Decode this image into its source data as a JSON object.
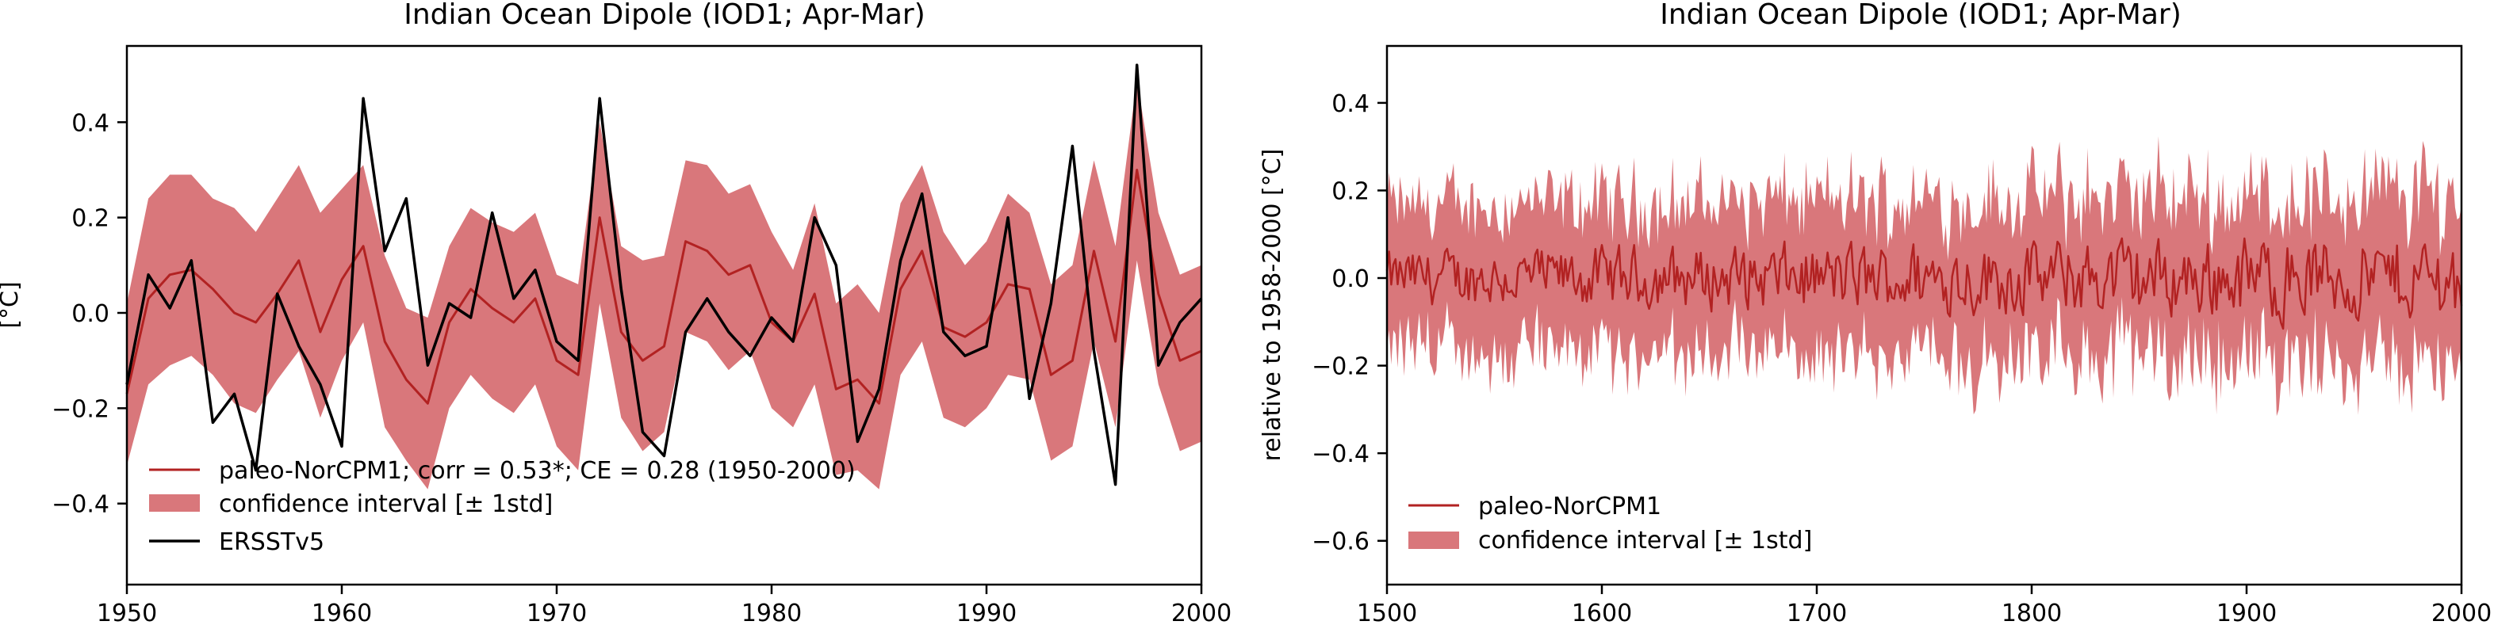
{
  "chart_data": [
    {
      "type": "line",
      "title": "Indian Ocean Dipole (IOD1; Apr-Mar)",
      "xlabel": "",
      "ylabel": "[°C]",
      "xlim": [
        1950,
        2000
      ],
      "ylim": [
        -0.57,
        0.56
      ],
      "xticks": [
        "1950",
        "1960",
        "1970",
        "1980",
        "1990",
        "2000"
      ],
      "yticks": [
        "−0.4",
        "−0.2",
        "0.0",
        "0.2",
        "0.4"
      ],
      "legend_position": "lower-left",
      "x": [
        1950,
        1951,
        1952,
        1953,
        1954,
        1955,
        1956,
        1957,
        1958,
        1959,
        1960,
        1961,
        1962,
        1963,
        1964,
        1965,
        1966,
        1967,
        1968,
        1969,
        1970,
        1971,
        1972,
        1973,
        1974,
        1975,
        1976,
        1977,
        1978,
        1979,
        1980,
        1981,
        1982,
        1983,
        1984,
        1985,
        1986,
        1987,
        1988,
        1989,
        1990,
        1991,
        1992,
        1993,
        1994,
        1995,
        1996,
        1997,
        1998,
        1999,
        2000
      ],
      "series": [
        {
          "name": "paleo-NorCPM1; corr = 0.53*; CE = 0.28 (1950-2000)",
          "kind": "line",
          "color": "#b22222",
          "values": [
            -0.17,
            0.03,
            0.08,
            0.09,
            0.05,
            0.0,
            -0.02,
            0.04,
            0.11,
            -0.04,
            0.07,
            0.14,
            -0.06,
            -0.14,
            -0.19,
            -0.02,
            0.05,
            0.01,
            -0.02,
            0.03,
            -0.1,
            -0.13,
            0.2,
            -0.04,
            -0.1,
            -0.07,
            0.15,
            0.13,
            0.08,
            0.1,
            -0.02,
            -0.06,
            0.04,
            -0.16,
            -0.14,
            -0.19,
            0.05,
            0.13,
            -0.03,
            -0.05,
            -0.02,
            0.06,
            0.05,
            -0.13,
            -0.1,
            0.13,
            -0.06,
            0.3,
            0.04,
            -0.1,
            -0.08
          ]
        },
        {
          "name": "confidence interval [± 1std]",
          "kind": "band",
          "color": "#d9777b",
          "upper": [
            0.02,
            0.24,
            0.29,
            0.29,
            0.24,
            0.22,
            0.17,
            0.24,
            0.31,
            0.21,
            0.26,
            0.31,
            0.12,
            0.01,
            -0.01,
            0.14,
            0.22,
            0.19,
            0.17,
            0.21,
            0.08,
            0.06,
            0.4,
            0.14,
            0.11,
            0.12,
            0.32,
            0.31,
            0.25,
            0.27,
            0.17,
            0.09,
            0.23,
            0.02,
            0.06,
            0.0,
            0.23,
            0.31,
            0.17,
            0.1,
            0.15,
            0.25,
            0.21,
            0.06,
            0.1,
            0.32,
            0.14,
            0.49,
            0.21,
            0.08,
            0.1
          ],
          "lower": [
            -0.32,
            -0.15,
            -0.11,
            -0.09,
            -0.13,
            -0.19,
            -0.21,
            -0.14,
            -0.08,
            -0.22,
            -0.1,
            -0.02,
            -0.24,
            -0.31,
            -0.37,
            -0.2,
            -0.13,
            -0.18,
            -0.21,
            -0.15,
            -0.28,
            -0.33,
            0.02,
            -0.22,
            -0.29,
            -0.25,
            -0.04,
            -0.06,
            -0.12,
            -0.08,
            -0.2,
            -0.24,
            -0.15,
            -0.34,
            -0.33,
            -0.37,
            -0.13,
            -0.06,
            -0.22,
            -0.24,
            -0.2,
            -0.13,
            -0.14,
            -0.31,
            -0.28,
            -0.06,
            -0.24,
            0.11,
            -0.15,
            -0.29,
            -0.27
          ]
        },
        {
          "name": "ERSSTv5",
          "kind": "line",
          "color": "#000000",
          "values": [
            -0.15,
            0.08,
            0.01,
            0.11,
            -0.23,
            -0.17,
            -0.33,
            0.04,
            -0.07,
            -0.15,
            -0.28,
            0.45,
            0.13,
            0.24,
            -0.11,
            0.02,
            -0.01,
            0.21,
            0.03,
            0.09,
            -0.06,
            -0.1,
            0.45,
            0.05,
            -0.25,
            -0.3,
            -0.04,
            0.03,
            -0.04,
            -0.09,
            -0.01,
            -0.06,
            0.2,
            0.1,
            -0.27,
            -0.16,
            0.11,
            0.25,
            -0.04,
            -0.09,
            -0.07,
            0.2,
            -0.18,
            0.02,
            0.35,
            -0.08,
            -0.36,
            0.52,
            -0.11,
            -0.02,
            0.03
          ]
        }
      ]
    },
    {
      "type": "line",
      "title": "Indian Ocean Dipole (IOD1; Apr-Mar)",
      "xlabel": "",
      "ylabel": "relative to 1958-2000 [°C]",
      "xlim": [
        1500,
        2000
      ],
      "ylim": [
        -0.7,
        0.53
      ],
      "xticks": [
        "1500",
        "1600",
        "1700",
        "1800",
        "1900",
        "2000"
      ],
      "yticks": [
        "−0.6",
        "−0.4",
        "−0.2",
        "0.0",
        "0.2",
        "0.4"
      ],
      "legend_position": "lower-left",
      "series": [
        {
          "name": "paleo-NorCPM1",
          "kind": "line",
          "color": "#b22222",
          "amplitude": 0.055,
          "mean": 0.0
        },
        {
          "name": "confidence interval [± 1std]",
          "kind": "band",
          "color": "#d9777b",
          "half_width": 0.17,
          "amplitude": 0.15
        }
      ]
    }
  ]
}
